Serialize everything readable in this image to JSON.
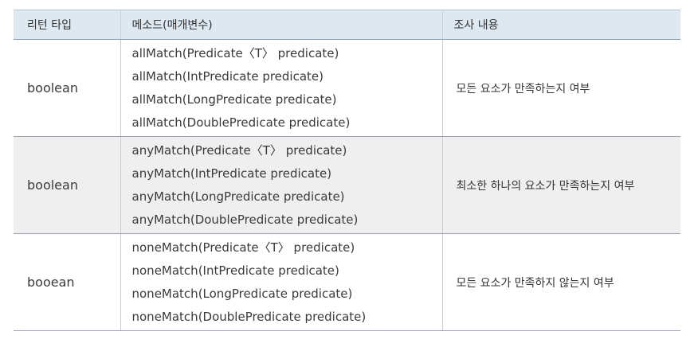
{
  "table": {
    "headers": {
      "type": "리턴 타입",
      "method": "메소드(매개변수)",
      "desc": "조사 내용"
    },
    "rows": [
      {
        "type": "boolean",
        "methods": [
          "allMatch(Predicate〈T〉 predicate)",
          "allMatch(IntPredicate predicate)",
          "allMatch(LongPredicate predicate)",
          "allMatch(DoublePredicate predicate)"
        ],
        "desc": "모든 요소가 만족하는지 여부"
      },
      {
        "type": "boolean",
        "methods": [
          "anyMatch(Predicate〈T〉 predicate)",
          "anyMatch(IntPredicate predicate)",
          "anyMatch(LongPredicate predicate)",
          "anyMatch(DoublePredicate predicate)"
        ],
        "desc": "최소한 하나의 요소가 만족하는지 여부"
      },
      {
        "type": "booean",
        "methods": [
          "noneMatch(Predicate〈T〉 predicate)",
          "noneMatch(IntPredicate predicate)",
          "noneMatch(LongPredicate predicate)",
          "noneMatch(DoublePredicate predicate)"
        ],
        "desc": "모든 요소가 만족하지 않는지 여부"
      }
    ]
  },
  "colors": {
    "header_bg": "#dde8f0",
    "shaded_row_bg": "#efefef",
    "rule": "#9aa5b1"
  }
}
